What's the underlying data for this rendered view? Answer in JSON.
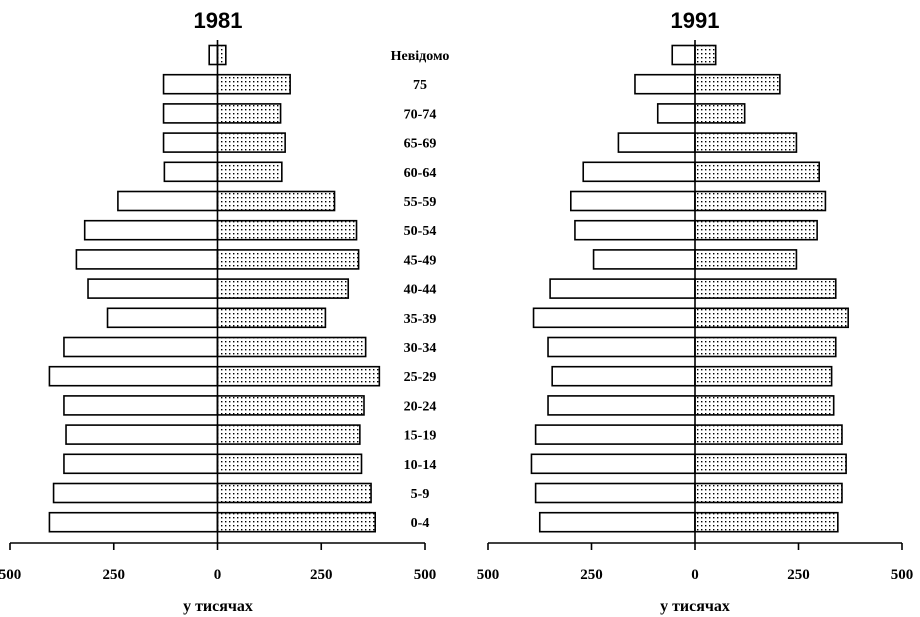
{
  "chart_data": [
    {
      "type": "bar",
      "orientation": "horizontal",
      "title": "1981",
      "categories": [
        "Невідомо",
        "75",
        "70-74",
        "65-69",
        "60-64",
        "55-59",
        "50-54",
        "45-49",
        "40-44",
        "35-39",
        "30-34",
        "25-29",
        "20-24",
        "15-19",
        "10-14",
        "5-9",
        "0-4"
      ],
      "series": [
        {
          "values": [
            -20,
            -130,
            -130,
            -130,
            -128,
            -240,
            -320,
            -340,
            -312,
            -265,
            -370,
            -405,
            -370,
            -365,
            -370,
            -395,
            -405
          ]
        },
        {
          "values": [
            20,
            175,
            152,
            163,
            155,
            282,
            335,
            340,
            315,
            260,
            357,
            390,
            353,
            343,
            347,
            370,
            380
          ]
        }
      ],
      "xticks": [
        "500",
        "250",
        "0",
        "250",
        "500"
      ],
      "xlim": [
        -500,
        500
      ],
      "xlabel": "у тисячах",
      "grid": false
    },
    {
      "type": "bar",
      "orientation": "horizontal",
      "title": "1991",
      "categories": [
        "Невідомо",
        "75",
        "70-74",
        "65-69",
        "60-64",
        "55-59",
        "50-54",
        "45-49",
        "40-44",
        "35-39",
        "30-34",
        "25-29",
        "20-24",
        "15-19",
        "10-14",
        "5-9",
        "0-4"
      ],
      "series": [
        {
          "values": [
            -55,
            -145,
            -90,
            -185,
            -270,
            -300,
            -290,
            -245,
            -350,
            -390,
            -355,
            -345,
            -355,
            -385,
            -395,
            -385,
            -375
          ]
        },
        {
          "values": [
            50,
            205,
            120,
            245,
            300,
            315,
            295,
            245,
            340,
            370,
            340,
            330,
            335,
            355,
            365,
            355,
            345
          ]
        }
      ],
      "xticks": [
        "500",
        "250",
        "0",
        "250",
        "500"
      ],
      "xlim": [
        -500,
        500
      ],
      "xlabel": "у тисячах",
      "grid": false
    }
  ]
}
